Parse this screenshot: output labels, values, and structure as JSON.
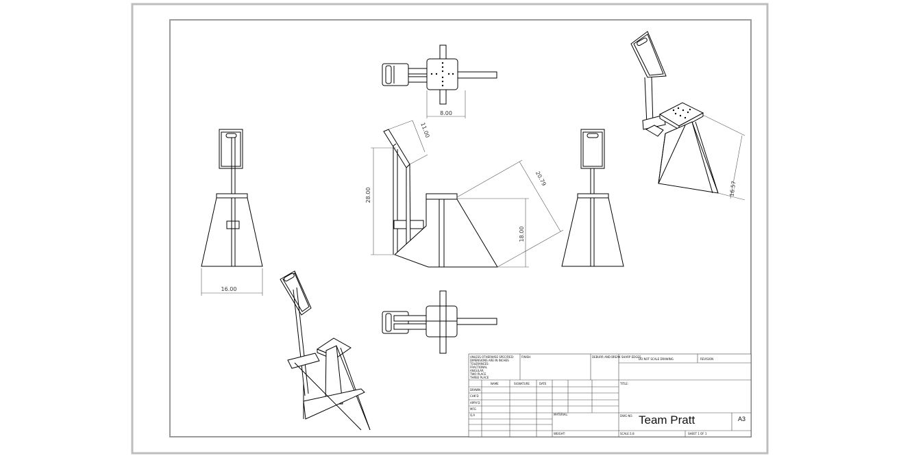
{
  "drawing": {
    "dimensions": {
      "top_width": "8.00",
      "height_28": "28.00",
      "angle_11": "11.00",
      "diag_20": "20.79",
      "height_18": "18.00",
      "base_width": "16.00",
      "iso_height": "16.57"
    },
    "title_block": {
      "notes": [
        "UNLESS OTHERWISE SPECIFIED:",
        "DIMENSIONS ARE IN INCHES",
        "TOLERANCES:",
        "FRACTIONAL",
        "ANGULAR",
        "TWO PLACE",
        "THREE PLACE"
      ],
      "finish_label": "FINISH",
      "deburr_label": "DEBURR AND BREAK SHARP EDGES",
      "no_scale_label": "DO NOT SCALE DRAWING",
      "revision_label": "REVISION",
      "col_name": "NAME",
      "col_signature": "SIGNATURE",
      "col_date": "DATE",
      "rows": [
        "DRAWN",
        "CHK'D",
        "APPV'D",
        "MFG",
        "Q.A"
      ],
      "title_label": "TITLE:",
      "material_label": "MATERIAL:",
      "weight_label": "WEIGHT:",
      "dwg_no_label": "DWG NO.",
      "title": "Team Pratt",
      "size": "A3",
      "scale_label": "SCALE:1:8",
      "sheet_label": "SHEET 1 OF 1"
    }
  }
}
